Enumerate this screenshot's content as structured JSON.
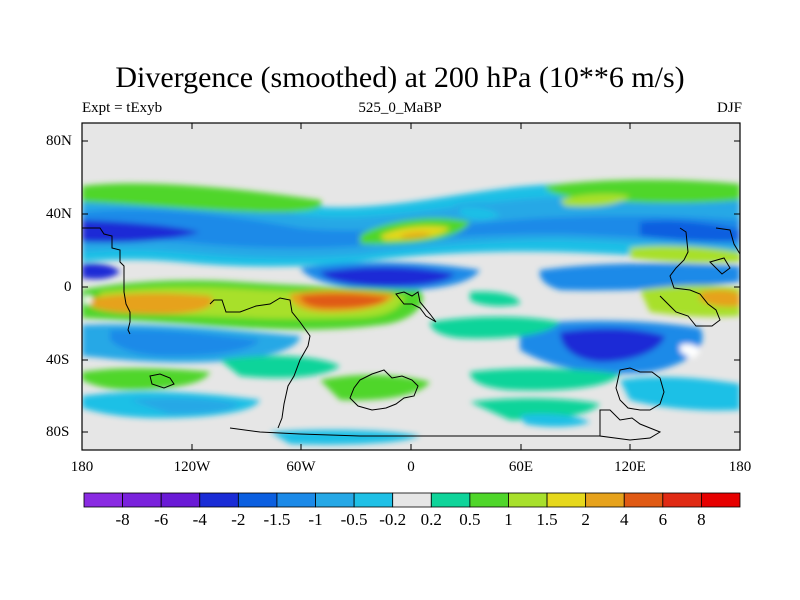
{
  "title": "Divergence (smoothed) at 200 hPa (10**6 m/s)",
  "subtitle_left": "Expt = tExyb",
  "subtitle_center": "525_0_MaBP",
  "subtitle_right": "DJF",
  "y_ticks": [
    "80N",
    "40N",
    "0",
    "40S",
    "80S"
  ],
  "x_ticks": [
    "180",
    "120W",
    "60W",
    "0",
    "60E",
    "120E",
    "180"
  ],
  "colorbar": {
    "labels": [
      "-8",
      "-6",
      "-4",
      "-2",
      "-1.5",
      "-1",
      "-0.5",
      "-0.2",
      "0.2",
      "0.5",
      "1",
      "1.5",
      "2",
      "4",
      "6",
      "8"
    ],
    "colors": [
      "#8a2be2",
      "#7a22dc",
      "#6a1ad6",
      "#1a2cd6",
      "#0b5fe0",
      "#1c8ae8",
      "#26a8e6",
      "#1fc0e6",
      "#e6e6e6",
      "#0fd49a",
      "#4fd62a",
      "#a8e02c",
      "#e6d81c",
      "#e6a21c",
      "#e05a14",
      "#e02a14",
      "#e60000"
    ]
  },
  "colors": {
    "background": "#e6e6e6",
    "coast": "#000000"
  }
}
